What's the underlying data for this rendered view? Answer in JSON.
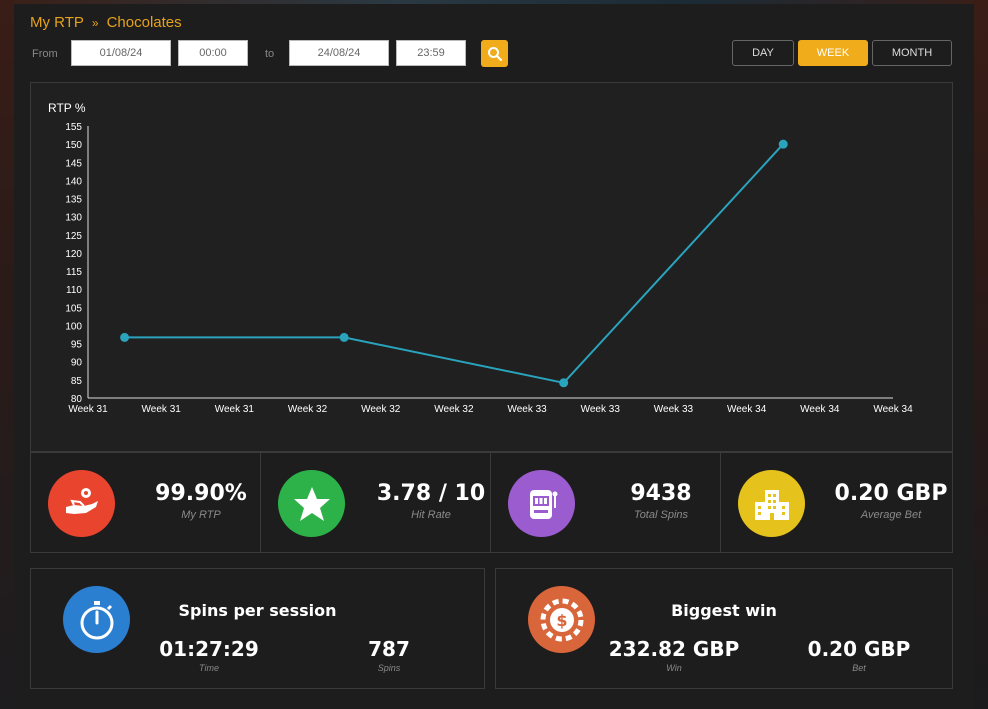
{
  "breadcrumb": {
    "root": "My RTP",
    "separator": "»",
    "current": "Chocolates"
  },
  "filters": {
    "from_label": "From",
    "from_date": "01/08/24",
    "from_time": "00:00",
    "to_label": "to",
    "to_date": "24/08/24",
    "to_time": "23:59",
    "search_icon": "search-icon"
  },
  "period_tabs": [
    {
      "label": "DAY",
      "active": false
    },
    {
      "label": "WEEK",
      "active": true
    },
    {
      "label": "MONTH",
      "active": false
    }
  ],
  "colors": {
    "accent": "#f0ac1a",
    "line": "#2aa3bd",
    "rtp": "#e8442e",
    "hit": "#2db24a",
    "spins": "#9b5ccf",
    "bet": "#e6c21c",
    "session": "#2b7fd0",
    "win": "#d8663a"
  },
  "chart_data": {
    "type": "line",
    "ylabel": "RTP %",
    "ylim": [
      80,
      155
    ],
    "yticks": [
      80,
      85,
      90,
      95,
      100,
      105,
      110,
      115,
      120,
      125,
      130,
      135,
      140,
      145,
      150,
      155
    ],
    "x_tick_labels": [
      "Week 31",
      "Week 31",
      "Week 32",
      "Week 32",
      "Week 32",
      "Week 33",
      "Week 33",
      "Week 33",
      "Week 34",
      "Week 34",
      "Week 34"
    ],
    "series": [
      {
        "points": [
          {
            "x": "Week 31",
            "y": 96.7
          },
          {
            "x": "Week 32",
            "y": 96.7
          },
          {
            "x": "Week 33",
            "y": 84.2
          },
          {
            "x": "Week 34",
            "y": 150
          }
        ]
      }
    ]
  },
  "stats": [
    {
      "icon": "hand-coin-icon",
      "value": "99.90%",
      "label": "My RTP"
    },
    {
      "icon": "star-icon",
      "value": "3.78 / 10",
      "label": "Hit Rate"
    },
    {
      "icon": "slot-machine-icon",
      "value": "9438",
      "label": "Total Spins"
    },
    {
      "icon": "building-icon",
      "value": "0.20 GBP",
      "label": "Average Bet"
    }
  ],
  "spins_per_session": {
    "icon": "stopwatch-icon",
    "title": "Spins per session",
    "time_value": "01:27:29",
    "time_label": "Time",
    "spins_value": "787",
    "spins_label": "Spins"
  },
  "biggest_win": {
    "icon": "casino-chip-icon",
    "title": "Biggest win",
    "win_value": "232.82 GBP",
    "win_label": "Win",
    "bet_value": "0.20 GBP",
    "bet_label": "Bet"
  }
}
